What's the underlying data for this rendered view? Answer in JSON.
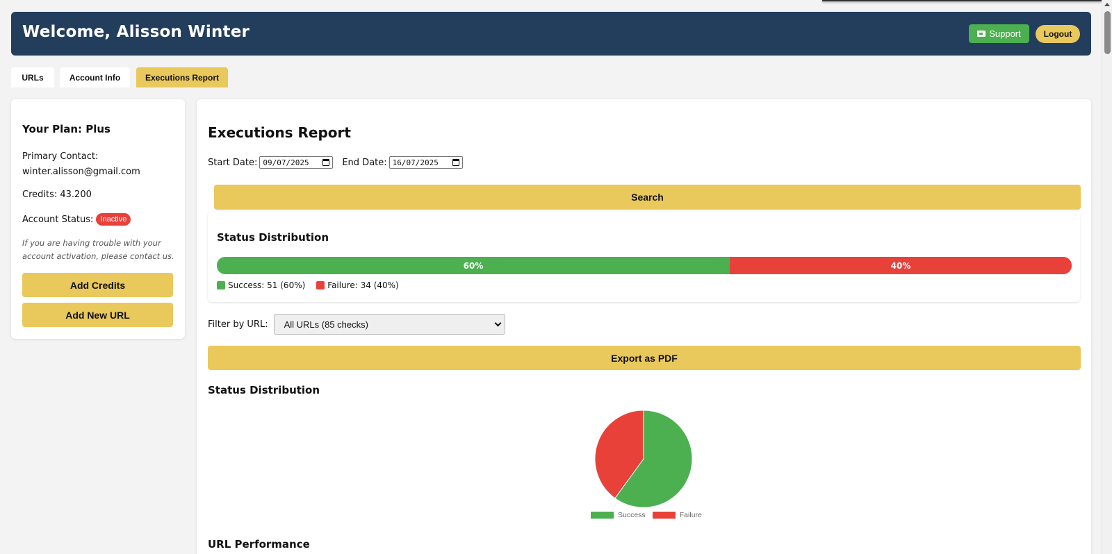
{
  "header": {
    "title": "Welcome, Alisson Winter",
    "support_label": "Support",
    "logout_label": "Logout"
  },
  "tabs": [
    {
      "label": "URLs",
      "active": false
    },
    {
      "label": "Account Info",
      "active": false
    },
    {
      "label": "Executions Report",
      "active": true
    }
  ],
  "sidebar": {
    "plan": "Your Plan: Plus",
    "contact_label": "Primary Contact:",
    "contact_email": "winter.alisson@gmail.com",
    "credits": "Credits: 43.200",
    "status_label": "Account Status:",
    "status_badge": "Inactive",
    "note": "If you are having trouble with your account activation, please contact us.",
    "add_credits_label": "Add Credits",
    "add_url_label": "Add New URL"
  },
  "report": {
    "title": "Executions Report",
    "start_label": "Start Date:",
    "start_value": "09/07/2025",
    "end_label": "End Date:",
    "end_value": "16/07/2025",
    "search_label": "Search",
    "distribution_title": "Status Distribution",
    "success_pct_label": "60%",
    "failure_pct_label": "40%",
    "success_legend": "Success: 51 (60%)",
    "failure_legend": "Failure: 34 (40%)",
    "filter_label": "Filter by URL:",
    "filter_value": "All URLs (85 checks)",
    "export_label": "Export as PDF",
    "pie_title": "Status Distribution",
    "url_performance_title": "URL Performance"
  },
  "colors": {
    "header_bg": "#233d5c",
    "accent": "#e9c85c",
    "success": "#4caf50",
    "failure": "#e8413a"
  },
  "chart_data": {
    "type": "pie",
    "categories": [
      "Success",
      "Failure"
    ],
    "values": [
      51,
      34
    ],
    "percent": [
      60,
      40
    ],
    "legend": "bottom"
  }
}
